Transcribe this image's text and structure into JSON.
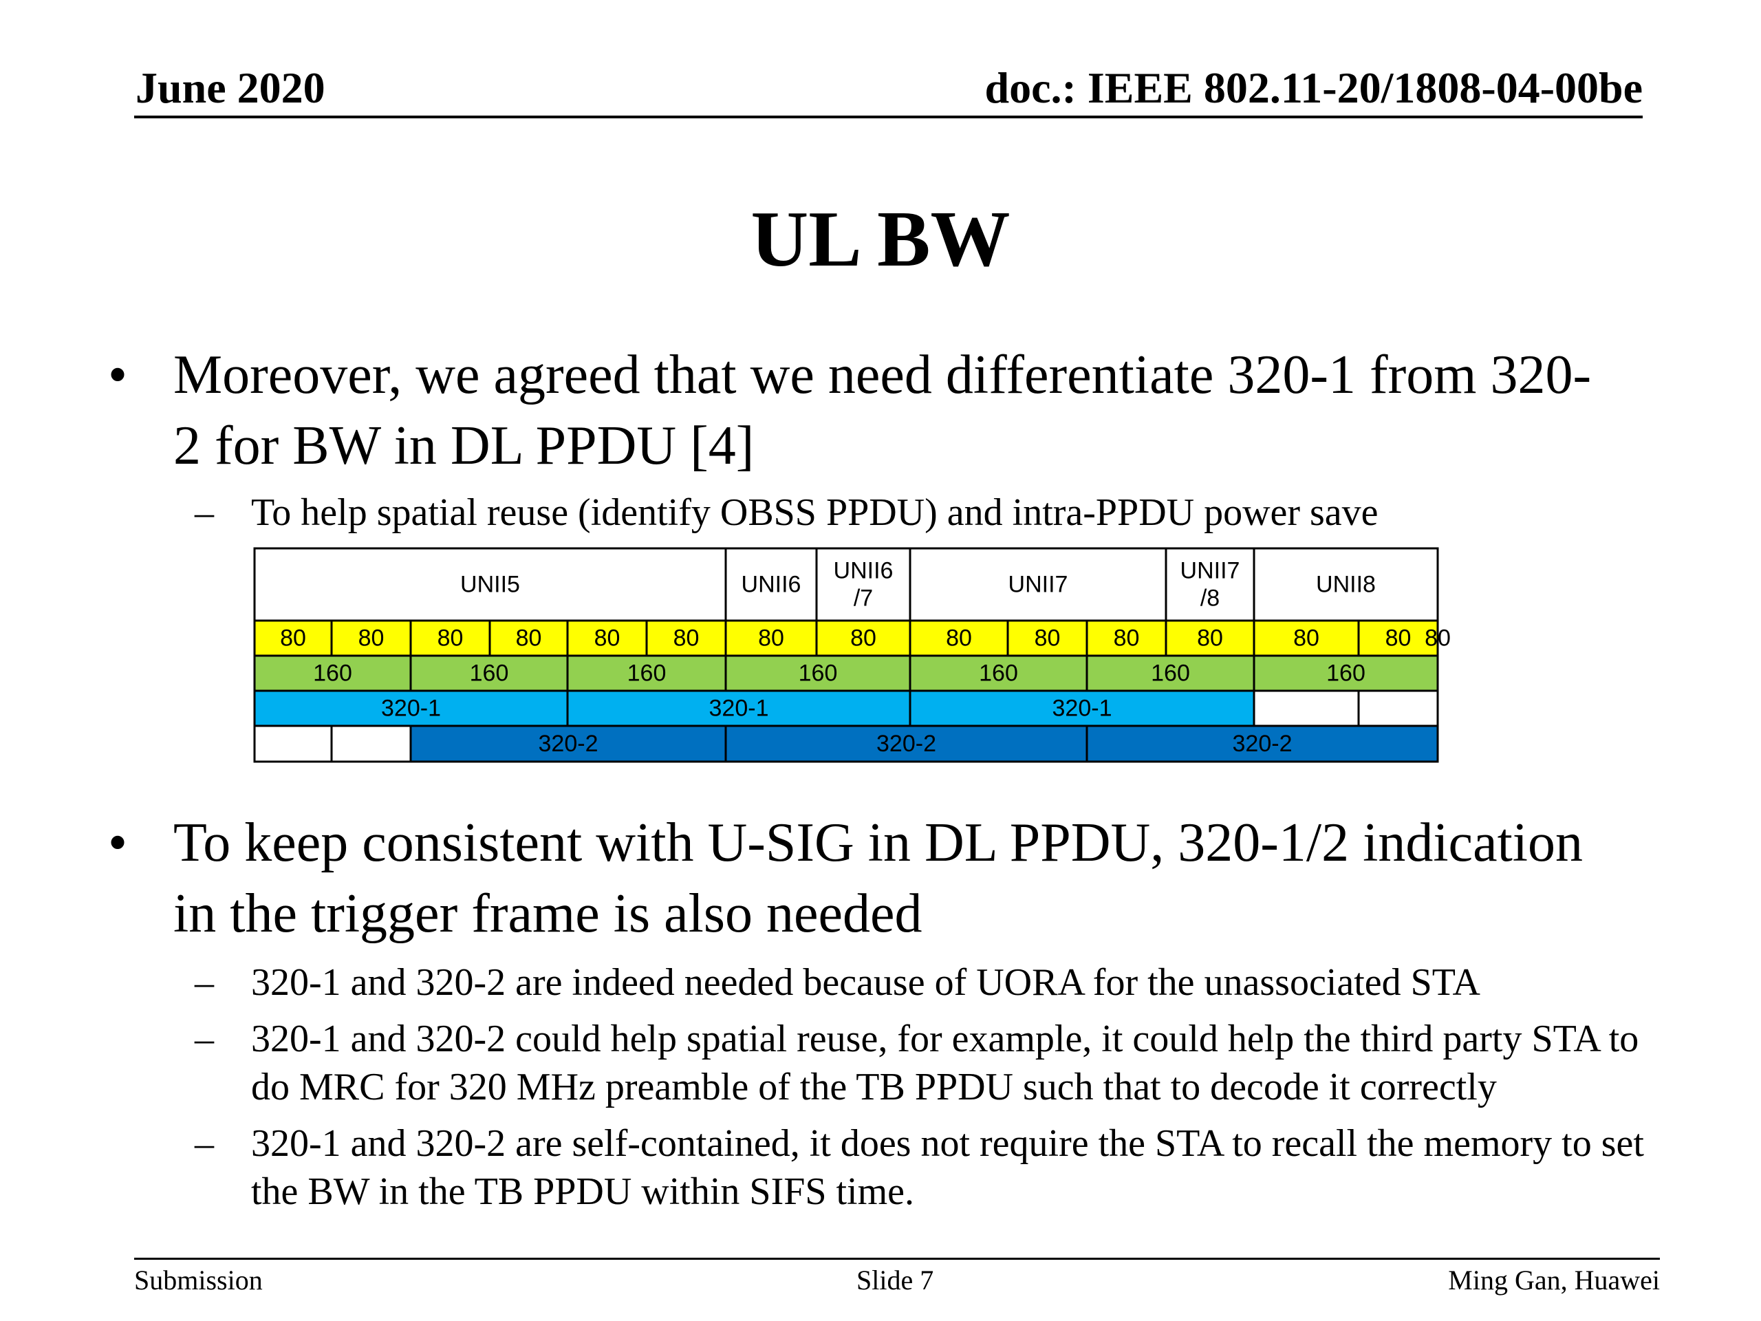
{
  "header": {
    "date": "June 2020",
    "doc_id": "doc.: IEEE 802.11-20/1808-04-00be"
  },
  "slide": {
    "title": "UL BW",
    "bullets": [
      {
        "text": "Moreover, we agreed that we need differentiate 320-1 from 320-2 for BW in DL PPDU [4]",
        "lines": [
          "Moreover, we agreed that we need differentiate 320-1 from 320-",
          "2 for BW in DL PPDU [4]"
        ],
        "subs": [
          {
            "lines": [
              "To help spatial reuse (identify OBSS PPDU) and intra-PPDU power save"
            ]
          }
        ]
      },
      {
        "text": "To keep consistent with U-SIG in DL PPDU, 320-1/2 indication in the trigger frame is also needed",
        "lines": [
          "To keep consistent with U-SIG in DL PPDU, 320-1/2 indication",
          "in the trigger frame is also needed"
        ],
        "subs": [
          {
            "lines": [
              "320-1 and 320-2 are indeed needed because of UORA for the unassociated STA"
            ]
          },
          {
            "lines": [
              "320-1 and 320-2 could help spatial reuse, for example, it could help the third party STA to",
              "do MRC for 320 MHz preamble of the TB PPDU such that to decode it correctly"
            ]
          },
          {
            "lines": [
              "320-1 and 320-2 are self-contained, it does not require the STA to recall the memory to set",
              "the BW in the TB PPDU within SIFS time."
            ]
          }
        ]
      }
    ]
  },
  "band_table": {
    "colors": {
      "ch80": "#ffff00",
      "ch160": "#92d050",
      "ch320_1": "#00b0f0",
      "ch320_2": "#0070c0",
      "empty": "#ffffff",
      "border": "#000000"
    },
    "slot_count": 15,
    "unii_row": [
      {
        "label": "UNII5",
        "span": [
          0,
          6
        ]
      },
      {
        "label": "UNII6",
        "span": [
          6,
          7
        ]
      },
      {
        "label": "UNII6\n/7",
        "span": [
          7,
          8
        ]
      },
      {
        "label": "UNII7",
        "span": [
          8,
          11
        ]
      },
      {
        "label": "UNII7\n/8",
        "span": [
          11,
          12
        ]
      },
      {
        "label": "UNII8",
        "span": [
          12,
          15
        ]
      }
    ],
    "row_80": [
      "80",
      "80",
      "80",
      "80",
      "80",
      "80",
      "80",
      "80",
      "80",
      "80",
      "80",
      "80",
      "80",
      "80",
      "80"
    ],
    "row_160": [
      {
        "label": "160",
        "span": [
          0,
          2
        ]
      },
      {
        "label": "160",
        "span": [
          2,
          4
        ]
      },
      {
        "label": "160",
        "span": [
          4,
          6
        ]
      },
      {
        "label": "160",
        "span": [
          6,
          8
        ]
      },
      {
        "label": "160",
        "span": [
          8,
          10
        ]
      },
      {
        "label": "160",
        "span": [
          10,
          12
        ]
      },
      {
        "label": "160",
        "span": [
          12,
          14
        ]
      }
    ],
    "row_320_1": [
      {
        "label": "320-1",
        "span": [
          0,
          4
        ],
        "kind": "ch320_1"
      },
      {
        "label": "320-1",
        "span": [
          4,
          8
        ],
        "kind": "ch320_1"
      },
      {
        "label": "320-1",
        "span": [
          8,
          12
        ],
        "kind": "ch320_1"
      },
      {
        "label": "",
        "span": [
          12,
          13
        ],
        "kind": "empty"
      },
      {
        "label": "",
        "span": [
          13,
          14
        ],
        "kind": "empty"
      }
    ],
    "row_320_2": [
      {
        "label": "",
        "span": [
          0,
          1
        ],
        "kind": "empty"
      },
      {
        "label": "",
        "span": [
          1,
          2
        ],
        "kind": "empty"
      },
      {
        "label": "320-2",
        "span": [
          2,
          6
        ],
        "kind": "ch320_2"
      },
      {
        "label": "320-2",
        "span": [
          6,
          10
        ],
        "kind": "ch320_2"
      },
      {
        "label": "320-2",
        "span": [
          10,
          14
        ],
        "kind": "ch320_2"
      }
    ]
  },
  "footer": {
    "left": "Submission",
    "center": "Slide 7",
    "right": "Ming Gan, Huawei"
  }
}
